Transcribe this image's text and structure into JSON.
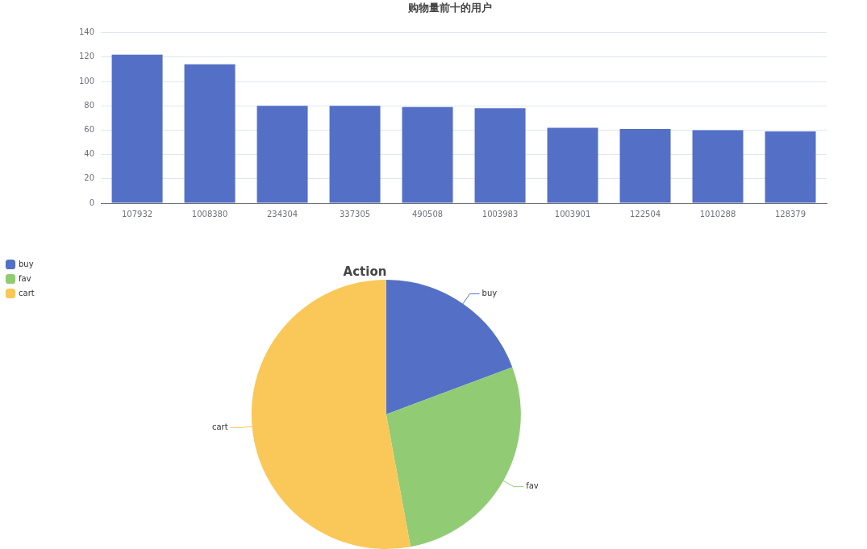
{
  "chart_data": [
    {
      "type": "bar",
      "title": "购物量前十的用户",
      "categories": [
        "107932",
        "1008380",
        "234304",
        "337305",
        "490508",
        "1003983",
        "1003901",
        "122504",
        "1010288",
        "128379"
      ],
      "values": [
        122,
        114,
        80,
        80,
        79,
        78,
        62,
        61,
        60,
        59
      ],
      "color": "#5470c6",
      "ylim": [
        0,
        140
      ],
      "yticks": [
        0,
        20,
        40,
        60,
        80,
        100,
        120,
        140
      ],
      "grid": "y"
    },
    {
      "type": "pie",
      "title": "Action",
      "categories": [
        "buy",
        "fav",
        "cart"
      ],
      "values": [
        19.3,
        27.8,
        52.9
      ],
      "colors": [
        "#5470c6",
        "#91cc75",
        "#fac858"
      ],
      "legend": "top left"
    }
  ]
}
